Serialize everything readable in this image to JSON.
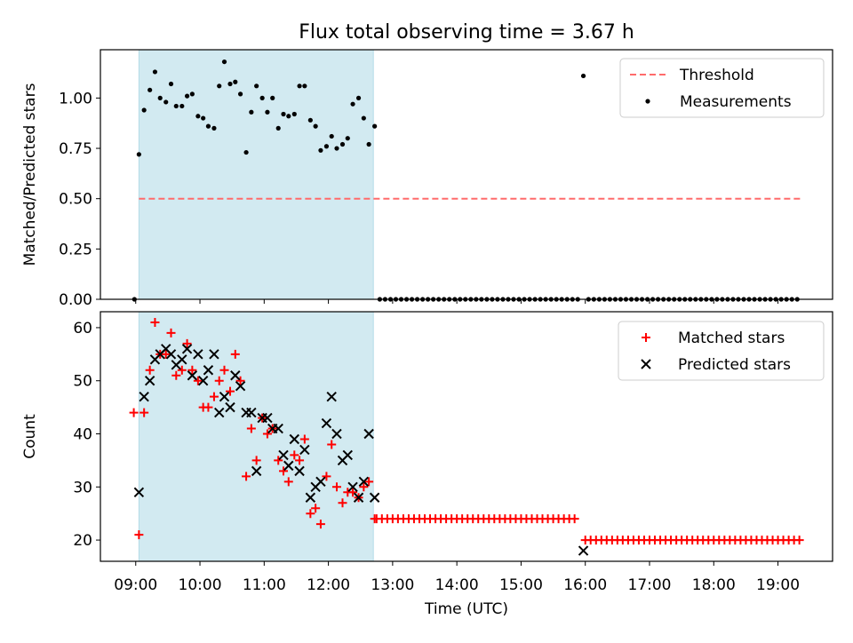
{
  "title": "Flux total observing time = 3.67 h",
  "chart_data": [
    {
      "type": "scatter",
      "panel": "top",
      "title": "Flux total observing time = 3.67 h",
      "xlabel": "",
      "ylabel": "Matched/Predicted stars",
      "xlim": [
        8.45,
        19.85
      ],
      "ylim": [
        0.0,
        1.24
      ],
      "yticks": [
        0.0,
        0.25,
        0.5,
        0.75,
        1.0
      ],
      "ytick_labels": [
        "0.00",
        "0.25",
        "0.50",
        "0.75",
        "1.00"
      ],
      "shaded_region": {
        "x0": 9.05,
        "x1": 12.7,
        "color": "#add8e6"
      },
      "legend_position": "upper right",
      "series": [
        {
          "name": "Threshold",
          "kind": "line",
          "style": "dashed",
          "color": "#ff6b6b",
          "x": [
            9.05,
            19.35
          ],
          "y": [
            0.5,
            0.5
          ]
        },
        {
          "name": "Measurements",
          "kind": "scatter",
          "marker": "dot",
          "color": "#000000",
          "x": [
            8.98,
            9.05,
            9.13,
            9.22,
            9.3,
            9.38,
            9.47,
            9.55,
            9.63,
            9.72,
            9.8,
            9.88,
            9.97,
            10.05,
            10.13,
            10.22,
            10.3,
            10.38,
            10.47,
            10.55,
            10.63,
            10.72,
            10.8,
            10.88,
            10.97,
            11.05,
            11.13,
            11.22,
            11.3,
            11.38,
            11.47,
            11.55,
            11.63,
            11.72,
            11.8,
            11.88,
            11.97,
            12.05,
            12.13,
            12.22,
            12.3,
            12.38,
            12.47,
            12.55,
            12.63,
            12.72,
            15.97
          ],
          "y": [
            0.0,
            0.72,
            0.94,
            1.04,
            1.13,
            1.0,
            0.98,
            1.07,
            0.96,
            0.96,
            1.01,
            1.02,
            0.91,
            0.9,
            0.86,
            0.85,
            1.06,
            1.18,
            1.07,
            1.08,
            1.02,
            0.73,
            0.93,
            1.06,
            1.0,
            0.93,
            1.0,
            0.85,
            0.92,
            0.91,
            0.92,
            1.06,
            1.06,
            0.89,
            0.86,
            0.74,
            0.76,
            0.81,
            0.75,
            0.77,
            0.8,
            0.97,
            1.0,
            0.9,
            0.77,
            0.86,
            1.11
          ],
          "zero_segments": [
            {
              "x_start": 12.8,
              "x_end": 15.9,
              "y": 0.0
            },
            {
              "x_start": 16.05,
              "x_end": 19.35,
              "y": 0.0
            }
          ]
        }
      ]
    },
    {
      "type": "scatter",
      "panel": "bottom",
      "xlabel": "Time (UTC)",
      "ylabel": "Count",
      "xlim": [
        8.45,
        19.85
      ],
      "ylim": [
        16.0,
        63.0
      ],
      "yticks": [
        20,
        30,
        40,
        50,
        60
      ],
      "ytick_labels": [
        "20",
        "30",
        "40",
        "50",
        "60"
      ],
      "xticks": [
        9,
        10,
        11,
        12,
        13,
        14,
        15,
        16,
        17,
        18,
        19
      ],
      "xtick_labels": [
        "09:00",
        "10:00",
        "11:00",
        "12:00",
        "13:00",
        "14:00",
        "15:00",
        "16:00",
        "17:00",
        "18:00",
        "19:00"
      ],
      "shaded_region": {
        "x0": 9.05,
        "x1": 12.7,
        "color": "#add8e6"
      },
      "legend_position": "upper right",
      "series": [
        {
          "name": "Matched stars",
          "kind": "scatter",
          "marker": "plus",
          "color": "#ff0000",
          "x": [
            8.97,
            9.05,
            9.13,
            9.22,
            9.3,
            9.38,
            9.47,
            9.55,
            9.63,
            9.72,
            9.8,
            9.88,
            9.97,
            10.05,
            10.13,
            10.22,
            10.3,
            10.38,
            10.47,
            10.55,
            10.63,
            10.72,
            10.8,
            10.88,
            10.97,
            11.05,
            11.13,
            11.22,
            11.3,
            11.38,
            11.47,
            11.55,
            11.63,
            11.72,
            11.8,
            11.88,
            11.97,
            12.05,
            12.13,
            12.22,
            12.3,
            12.38,
            12.47,
            12.55,
            12.63,
            12.72
          ],
          "y": [
            44,
            21,
            44,
            52,
            61,
            55,
            55,
            59,
            51,
            52,
            57,
            52,
            50,
            45,
            45,
            47,
            50,
            52,
            48,
            55,
            50,
            32,
            41,
            35,
            43,
            40,
            41,
            35,
            33,
            31,
            36,
            35,
            39,
            25,
            26,
            23,
            32,
            38,
            30,
            27,
            29,
            29,
            28,
            30,
            31,
            24
          ],
          "flat_segments": [
            {
              "x_start": 12.75,
              "x_end": 15.9,
              "y": 24
            },
            {
              "x_start": 16.0,
              "x_end": 19.35,
              "y": 20
            }
          ]
        },
        {
          "name": "Predicted stars",
          "kind": "scatter",
          "marker": "x",
          "color": "#000000",
          "x": [
            9.05,
            9.13,
            9.22,
            9.3,
            9.38,
            9.47,
            9.55,
            9.63,
            9.72,
            9.8,
            9.88,
            9.97,
            10.05,
            10.13,
            10.22,
            10.3,
            10.38,
            10.47,
            10.55,
            10.63,
            10.72,
            10.8,
            10.88,
            10.97,
            11.05,
            11.13,
            11.22,
            11.3,
            11.38,
            11.47,
            11.55,
            11.63,
            11.72,
            11.8,
            11.88,
            11.97,
            12.05,
            12.13,
            12.22,
            12.3,
            12.38,
            12.47,
            12.55,
            12.63,
            12.72,
            15.97
          ],
          "y": [
            29,
            47,
            50,
            54,
            55,
            56,
            55,
            53,
            54,
            56,
            51,
            55,
            50,
            52,
            55,
            44,
            47,
            45,
            51,
            49,
            44,
            44,
            33,
            43,
            43,
            41,
            41,
            36,
            34,
            39,
            33,
            37,
            28,
            30,
            31,
            42,
            47,
            40,
            35,
            36,
            30,
            28,
            31,
            40,
            28,
            18
          ]
        }
      ]
    }
  ]
}
